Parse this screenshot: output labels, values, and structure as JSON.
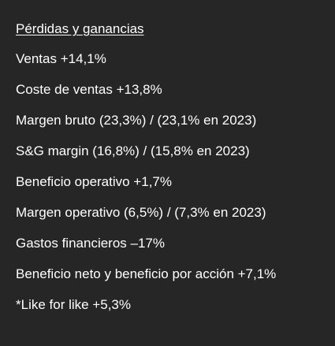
{
  "section": {
    "heading": "Pérdidas y ganancias",
    "items": [
      "Ventas +14,1%",
      "Coste de ventas +13,8%",
      "Margen bruto (23,3%) / (23,1% en 2023)",
      "S&G margin (16,8%) / (15,8% en 2023)",
      "Beneficio operativo +1,7%",
      "Margen operativo (6,5%) / (7,3% en 2023)",
      "Gastos financieros  –17%",
      "Beneficio neto y beneficio por acción +7,1%",
      "*Like for like +5,3%"
    ]
  },
  "colors": {
    "background": "#262626",
    "text": "#ffffff"
  }
}
